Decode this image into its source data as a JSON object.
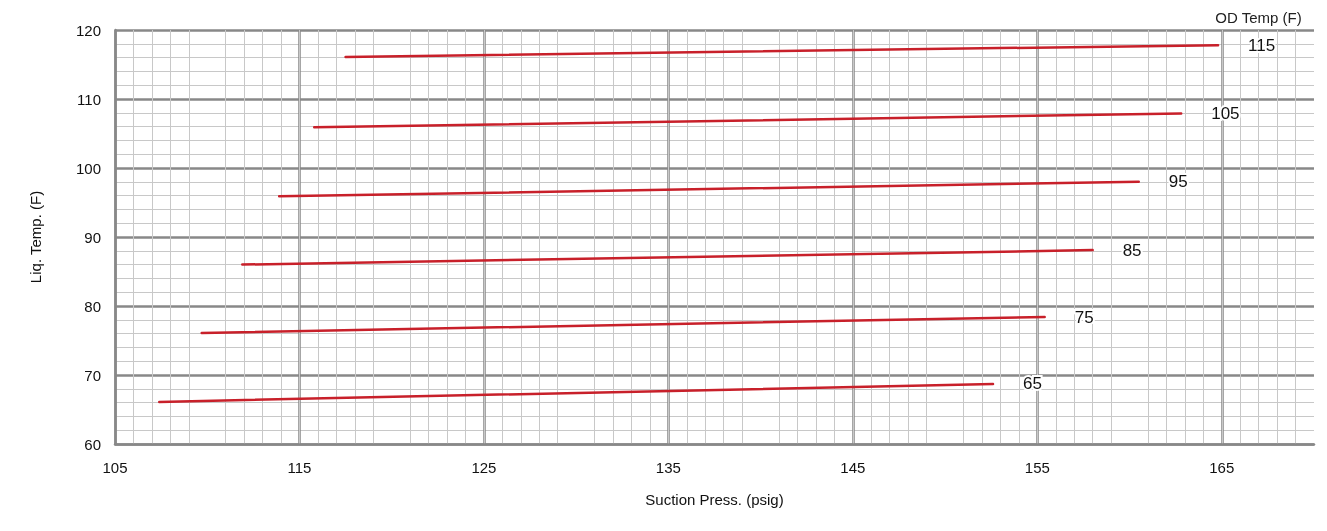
{
  "chart_data": {
    "type": "line",
    "legend_title": "OD Temp (F)",
    "xlabel": "Suction Press. (psig)",
    "ylabel": "Liq. Temp. (F)",
    "xlim": [
      105,
      170
    ],
    "xticks": [
      105,
      115,
      125,
      135,
      145,
      155,
      165
    ],
    "ylim": [
      60,
      120
    ],
    "yticks": [
      60,
      70,
      80,
      90,
      100,
      110,
      120
    ],
    "grid": true,
    "marker": "none",
    "line_style": "solid",
    "series": [
      {
        "name": "115",
        "color": "#c8202a",
        "x": [
          117.5,
          164.8
        ],
        "values": [
          116.1,
          117.8
        ]
      },
      {
        "name": "105",
        "color": "#c8202a",
        "x": [
          115.8,
          162.8
        ],
        "values": [
          105.9,
          107.9
        ]
      },
      {
        "name": "95",
        "color": "#c8202a",
        "x": [
          113.9,
          160.5
        ],
        "values": [
          95.9,
          98.0
        ]
      },
      {
        "name": "85",
        "color": "#c8202a",
        "x": [
          111.9,
          158.0
        ],
        "values": [
          86.0,
          88.1
        ]
      },
      {
        "name": "75",
        "color": "#c8202a",
        "x": [
          109.7,
          155.4
        ],
        "values": [
          76.1,
          78.4
        ]
      },
      {
        "name": "65",
        "color": "#c8202a",
        "x": [
          107.4,
          152.6
        ],
        "values": [
          66.1,
          68.7
        ]
      }
    ]
  }
}
